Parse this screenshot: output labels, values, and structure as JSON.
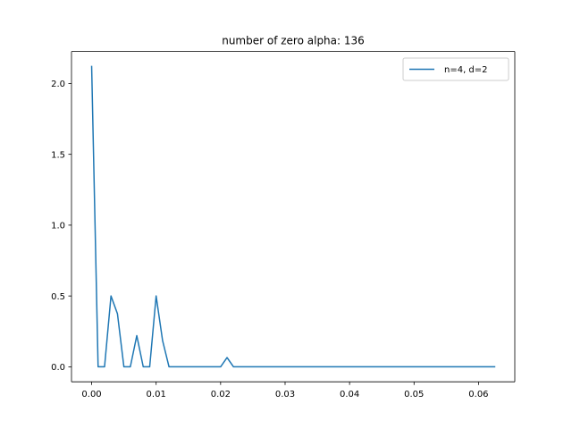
{
  "chart_data": {
    "type": "line",
    "title": "number of zero alpha: 136",
    "xlabel": "",
    "ylabel": "",
    "xlim": [
      -0.003125,
      0.065625
    ],
    "ylim": [
      -0.106,
      2.226
    ],
    "xticks": [
      0.0,
      0.01,
      0.02,
      0.03,
      0.04,
      0.05,
      0.06
    ],
    "xtick_labels": [
      "0.00",
      "0.01",
      "0.02",
      "0.03",
      "0.04",
      "0.05",
      "0.06"
    ],
    "yticks": [
      0.0,
      0.5,
      1.0,
      1.5,
      2.0
    ],
    "ytick_labels": [
      "0.0",
      "0.5",
      "1.0",
      "1.5",
      "2.0"
    ],
    "grid": false,
    "legend_position": "top-right",
    "series": [
      {
        "name": "n=4, d=2",
        "color": "#1f77b4",
        "x": [
          0.0,
          0.001,
          0.002,
          0.003,
          0.004,
          0.005,
          0.006,
          0.007,
          0.008,
          0.009,
          0.01,
          0.011,
          0.012,
          0.013,
          0.014,
          0.015,
          0.016,
          0.017,
          0.018,
          0.019,
          0.02,
          0.021,
          0.022,
          0.023,
          0.024,
          0.025,
          0.0625
        ],
        "y": [
          2.12,
          0.0,
          0.0,
          0.5,
          0.375,
          0.0,
          0.0,
          0.22,
          0.0,
          0.0,
          0.5,
          0.185,
          0.0,
          0.0,
          0.0,
          0.0,
          0.0,
          0.0,
          0.0,
          0.0,
          0.0,
          0.065,
          0.0,
          0.0,
          0.0,
          0.0,
          0.0
        ]
      }
    ]
  }
}
